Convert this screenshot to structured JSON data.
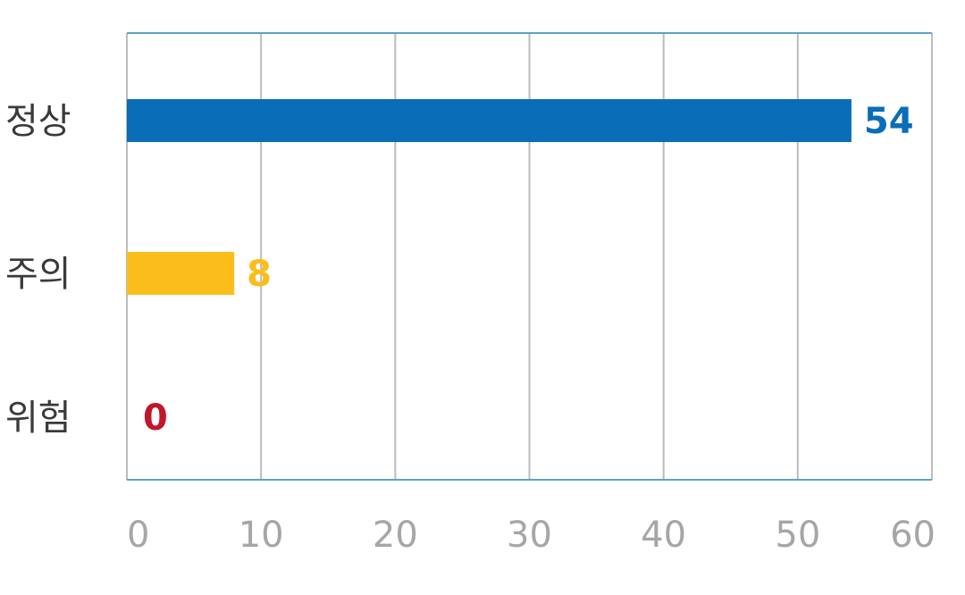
{
  "chart_data": {
    "type": "bar",
    "orientation": "horizontal",
    "categories": [
      "정상",
      "주의",
      "위험"
    ],
    "values": [
      54,
      8,
      0
    ],
    "colors": [
      "#0a6db8",
      "#fbbd1b",
      "#c0172b"
    ],
    "xlim": [
      0,
      60
    ],
    "xticks": [
      0,
      10,
      20,
      30,
      40,
      50,
      60
    ],
    "grid": true,
    "legend": "none",
    "title": "",
    "xlabel": "",
    "ylabel": ""
  },
  "theme": {
    "axis_color": "#5aa3c6",
    "grid_color": "#bcbcbc"
  }
}
